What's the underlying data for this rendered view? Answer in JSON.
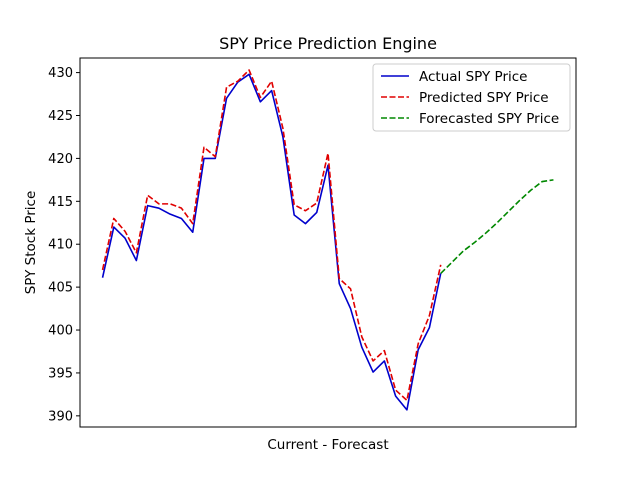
{
  "chart_data": {
    "type": "line",
    "title": "SPY Price Prediction Engine",
    "xlabel": "Current - Forecast",
    "ylabel": "SPY Stock Price",
    "ylim": [
      388.7,
      431.7
    ],
    "xlim": [
      -2,
      42
    ],
    "yticks": [
      390,
      395,
      400,
      405,
      410,
      415,
      420,
      425,
      430
    ],
    "show_xticks": false,
    "grid": false,
    "legend_position": "top-right",
    "series": [
      {
        "name": "Actual SPY Price",
        "color": "#0000cc",
        "style": "solid",
        "x": [
          0,
          1,
          2,
          3,
          4,
          5,
          6,
          7,
          8,
          9,
          10,
          11,
          12,
          13,
          14,
          15,
          16,
          17,
          18,
          19,
          20,
          21,
          22,
          23,
          24,
          25,
          26,
          27,
          28,
          29,
          30
        ],
        "values": [
          406.1,
          412.0,
          410.7,
          408.1,
          414.5,
          414.2,
          413.5,
          413.0,
          411.4,
          420.0,
          420.0,
          427.0,
          428.9,
          429.8,
          426.6,
          427.9,
          422.5,
          413.4,
          412.4,
          413.7,
          419.2,
          405.4,
          402.5,
          398.0,
          395.1,
          396.4,
          392.3,
          390.7,
          397.7,
          400.3,
          406.6
        ]
      },
      {
        "name": "Predicted SPY Price",
        "color": "#e00000",
        "style": "dashed",
        "x": [
          0,
          1,
          2,
          3,
          4,
          5,
          6,
          7,
          8,
          9,
          10,
          11,
          12,
          13,
          14,
          15,
          16,
          17,
          18,
          19,
          20,
          21,
          22,
          23,
          24,
          25,
          26,
          27,
          28,
          29,
          30
        ],
        "values": [
          407.0,
          413.0,
          411.5,
          409.0,
          415.7,
          414.7,
          414.7,
          414.2,
          412.4,
          421.3,
          420.2,
          428.3,
          429.0,
          430.3,
          427.1,
          429.0,
          423.5,
          414.6,
          413.9,
          414.8,
          420.6,
          406.0,
          404.8,
          399.2,
          396.4,
          397.6,
          393.0,
          391.8,
          398.4,
          401.7,
          407.6
        ]
      },
      {
        "name": "Forecasted SPY Price",
        "color": "#008800",
        "style": "dashed",
        "x": [
          30,
          31,
          32,
          33,
          34,
          35,
          36,
          37,
          38,
          39,
          40
        ],
        "values": [
          406.6,
          407.9,
          409.2,
          410.2,
          411.3,
          412.5,
          413.8,
          415.1,
          416.3,
          417.3,
          417.5
        ]
      }
    ]
  }
}
